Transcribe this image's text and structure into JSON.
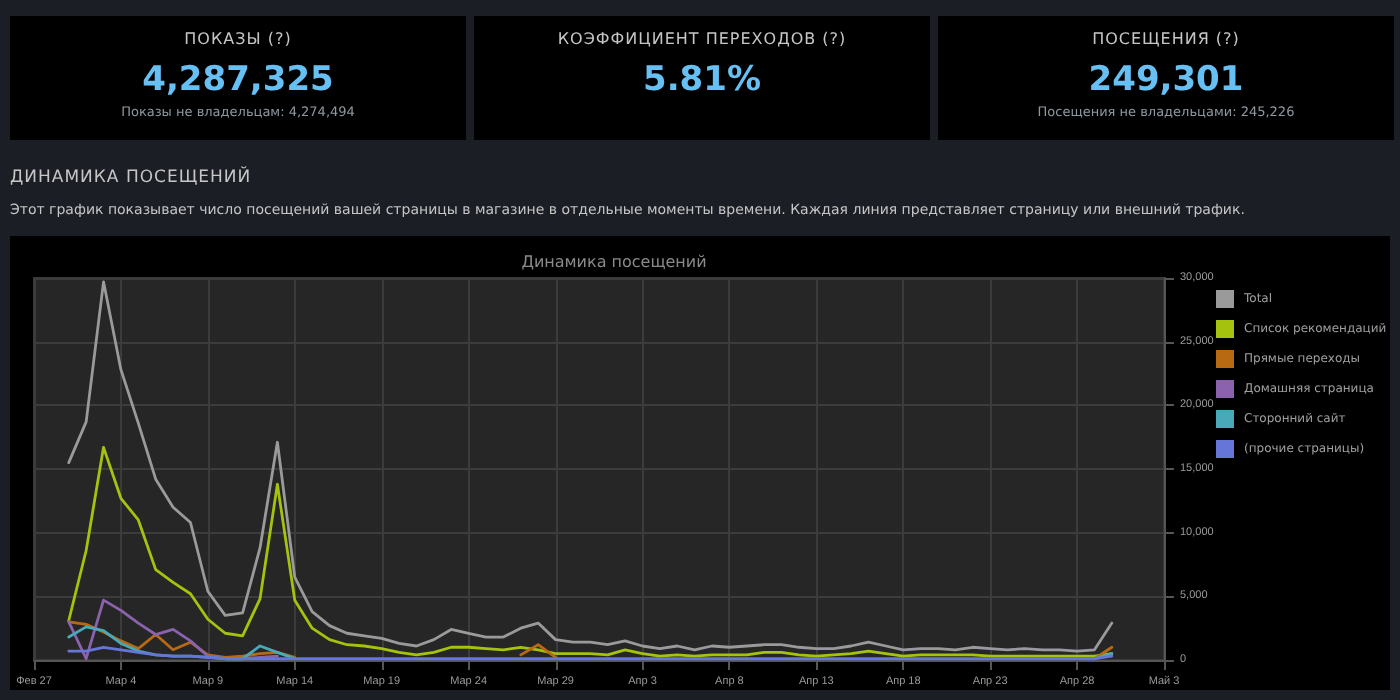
{
  "chart_data": [
    {
      "type": "other",
      "title": "ПОКАЗЫ (?)",
      "annotations": [
        "4,287,325",
        "Показы не владельцам: 4,274,494"
      ]
    },
    {
      "type": "other",
      "title": "КОЭФФИЦИЕНТ ПЕРЕХОДОВ (?)",
      "annotations": [
        "5.81%"
      ]
    },
    {
      "type": "other",
      "title": "ПОСЕЩЕНИЯ (?)",
      "annotations": [
        "249,301",
        "Посещения не владельцами: 245,226"
      ]
    },
    {
      "type": "other",
      "title": "ДИНАМИКА ПОСЕЩЕНИЙ",
      "subtitle": "Этот график показывает число посещений вашей страницы в магазине в отдельные моменты времени. Каждая линия представляет страницу или внешний трафик."
    },
    {
      "type": "line",
      "title": "Динамика посещений",
      "grid": true,
      "legend": "right",
      "marker": "none",
      "x": [
        "--03-01",
        "--03-02",
        "--03-03",
        "--03-04",
        "--03-05",
        "--03-06",
        "--03-07",
        "--03-08",
        "--03-09",
        "--03-10",
        "--03-11",
        "--03-12",
        "--03-13",
        "--03-14",
        "--03-15",
        "--03-16",
        "--03-17",
        "--03-18",
        "--03-19",
        "--03-20",
        "--03-21",
        "--03-22",
        "--03-23",
        "--03-24",
        "--03-25",
        "--03-26",
        "--03-27",
        "--03-28",
        "--03-29",
        "--03-30",
        "--03-31",
        "--04-01",
        "--04-02",
        "--04-03",
        "--04-04",
        "--04-05",
        "--04-06",
        "--04-07",
        "--04-08",
        "--04-09",
        "--04-10",
        "--04-11",
        "--04-12",
        "--04-13",
        "--04-14",
        "--04-15",
        "--04-16",
        "--04-17",
        "--04-18",
        "--04-19",
        "--04-20",
        "--04-21",
        "--04-22",
        "--04-23",
        "--04-24",
        "--04-25",
        "--04-26",
        "--04-27",
        "--04-28",
        "--04-29",
        "--04-30"
      ],
      "xlim": [
        "--02-27",
        "--05-03"
      ],
      "xticks": [
        {
          "value": "--02-27",
          "label": "Фев 27"
        },
        {
          "value": "--03-04",
          "label": "Мар 4"
        },
        {
          "value": "--03-09",
          "label": "Мар 9"
        },
        {
          "value": "--03-14",
          "label": "Мар 14"
        },
        {
          "value": "--03-19",
          "label": "Мар 19"
        },
        {
          "value": "--03-24",
          "label": "Мар 24"
        },
        {
          "value": "--03-29",
          "label": "Мар 29"
        },
        {
          "value": "--04-03",
          "label": "Апр 3"
        },
        {
          "value": "--04-08",
          "label": "Апр 8"
        },
        {
          "value": "--04-13",
          "label": "Апр 13"
        },
        {
          "value": "--04-18",
          "label": "Апр 18"
        },
        {
          "value": "--04-23",
          "label": "Апр 23"
        },
        {
          "value": "--04-28",
          "label": "Апр 28"
        },
        {
          "value": "--05-03",
          "label": "Май 3"
        }
      ],
      "ylim": [
        0,
        30000
      ],
      "yticks": [
        {
          "value": 0,
          "label": "0"
        },
        {
          "value": 5000,
          "label": "5,000"
        },
        {
          "value": 10000,
          "label": "10,000"
        },
        {
          "value": 15000,
          "label": "15,000"
        },
        {
          "value": 20000,
          "label": "20,000"
        },
        {
          "value": 25000,
          "label": "25,000"
        },
        {
          "value": 30000,
          "label": "30,000"
        }
      ],
      "series": [
        {
          "name": "Total",
          "color": "#9a9a9a",
          "values": [
            15500,
            18700,
            29700,
            22800,
            18600,
            14200,
            12000,
            10800,
            5400,
            3500,
            3700,
            8800,
            17100,
            6500,
            3800,
            2700,
            2100,
            1900,
            1700,
            1300,
            1100,
            1600,
            2400,
            2100,
            1800,
            1800,
            2500,
            2900,
            1600,
            1400,
            1400,
            1200,
            1500,
            1100,
            900,
            1100,
            800,
            1100,
            1000,
            1100,
            1200,
            1200,
            1000,
            900,
            900,
            1100,
            1400,
            1100,
            800,
            900,
            900,
            800,
            1000,
            900,
            800,
            900,
            800,
            800,
            700,
            800,
            2900
          ]
        },
        {
          "name": "Список рекомендаций",
          "color": "#a4c20e",
          "values": [
            3100,
            8600,
            16700,
            12700,
            11000,
            7100,
            6100,
            5200,
            3200,
            2100,
            1900,
            4800,
            13800,
            4700,
            2500,
            1600,
            1200,
            1100,
            900,
            600,
            400,
            600,
            1000,
            1000,
            900,
            800,
            1000,
            800,
            500,
            500,
            500,
            400,
            800,
            500,
            300,
            400,
            300,
            400,
            400,
            400,
            600,
            600,
            400,
            300,
            400,
            500,
            700,
            500,
            300,
            400,
            400,
            400,
            400,
            300,
            300,
            300,
            300,
            300,
            300,
            300,
            500
          ]
        },
        {
          "name": "Прямые переходы",
          "color": "#b86a12",
          "values": [
            3000,
            2800,
            2200,
            1500,
            900,
            2000,
            800,
            1400,
            400,
            200,
            300,
            500,
            600,
            200,
            null,
            null,
            null,
            null,
            null,
            null,
            null,
            null,
            null,
            null,
            null,
            null,
            400,
            1200,
            200,
            null,
            null,
            null,
            null,
            null,
            null,
            null,
            null,
            null,
            null,
            null,
            null,
            null,
            null,
            null,
            null,
            null,
            null,
            null,
            null,
            null,
            null,
            null,
            null,
            null,
            null,
            null,
            null,
            null,
            null,
            100,
            1000
          ]
        },
        {
          "name": "Домашняя страница",
          "color": "#8a62ad",
          "values": [
            3000,
            100,
            4700,
            3900,
            2900,
            2000,
            2400,
            1500,
            300,
            100,
            100,
            200,
            300,
            null,
            null,
            null,
            null,
            null,
            null,
            null,
            null,
            null,
            null,
            null,
            null,
            null,
            null,
            null,
            null,
            null,
            null,
            null,
            null,
            null,
            null,
            null,
            null,
            null,
            null,
            null,
            null,
            null,
            null,
            null,
            null,
            null,
            null,
            null,
            null,
            null,
            null,
            null,
            null,
            null,
            null,
            null,
            null,
            null,
            null,
            null,
            null
          ]
        },
        {
          "name": "Сторонний сайт",
          "color": "#4aa9b8",
          "values": [
            1800,
            2600,
            2300,
            1300,
            700,
            400,
            300,
            300,
            200,
            100,
            100,
            1100,
            600,
            100,
            null,
            null,
            null,
            null,
            null,
            null,
            null,
            null,
            null,
            null,
            null,
            null,
            null,
            null,
            null,
            null,
            null,
            null,
            null,
            null,
            null,
            null,
            null,
            null,
            null,
            null,
            null,
            null,
            null,
            null,
            null,
            null,
            null,
            null,
            null,
            null,
            null,
            null,
            null,
            null,
            null,
            null,
            null,
            null,
            null,
            100,
            500
          ]
        },
        {
          "name": "(прочие страницы)",
          "color": "#6676d8",
          "values": [
            700,
            700,
            1000,
            800,
            600,
            400,
            300,
            300,
            200,
            100,
            100,
            100,
            100,
            100,
            100,
            100,
            100,
            100,
            100,
            100,
            100,
            100,
            100,
            100,
            100,
            100,
            100,
            100,
            100,
            100,
            100,
            100,
            100,
            100,
            100,
            100,
            100,
            100,
            100,
            100,
            100,
            100,
            100,
            100,
            100,
            100,
            100,
            100,
            100,
            100,
            100,
            100,
            100,
            100,
            100,
            100,
            100,
            100,
            100,
            100,
            300
          ]
        }
      ]
    }
  ]
}
